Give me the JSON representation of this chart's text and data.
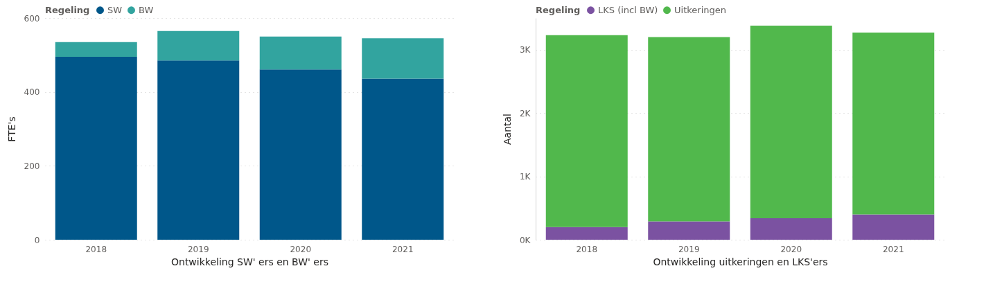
{
  "chart_data": [
    {
      "type": "bar",
      "stacked": true,
      "legend_title": "Regeling",
      "legend": "top left",
      "xlabel": "Ontwikkeling SW' ers en BW' ers",
      "ylabel": "FTE's",
      "categories": [
        "2018",
        "2019",
        "2020",
        "2021"
      ],
      "ylim": [
        0,
        600
      ],
      "yticks": [
        0,
        200,
        400,
        600
      ],
      "grid": "y",
      "series": [
        {
          "name": "SW",
          "color": "#00578a",
          "values": [
            495,
            485,
            461,
            436
          ]
        },
        {
          "name": "BW",
          "color": "#32a49f",
          "values": [
            40,
            80,
            89,
            109
          ]
        }
      ]
    },
    {
      "type": "bar",
      "stacked": true,
      "legend_title": "Regeling",
      "legend": "top left",
      "xlabel": "Ontwikkeling uitkeringen en LKS'ers",
      "ylabel": "Aantal",
      "categories": [
        "2018",
        "2019",
        "2020",
        "2021"
      ],
      "ylim": [
        0,
        3500
      ],
      "yticks": [
        {
          "value": 0,
          "label": "0K"
        },
        {
          "value": 1000,
          "label": "1K"
        },
        {
          "value": 2000,
          "label": "2K"
        },
        {
          "value": 3000,
          "label": "3K"
        }
      ],
      "grid": "y",
      "series": [
        {
          "name": "LKS (incl BW)",
          "color": "#7b52a1",
          "values": [
            200,
            290,
            340,
            400
          ]
        },
        {
          "name": "Uitkeringen",
          "color": "#51b84c",
          "values": [
            3030,
            2910,
            3040,
            2870
          ]
        }
      ]
    }
  ]
}
